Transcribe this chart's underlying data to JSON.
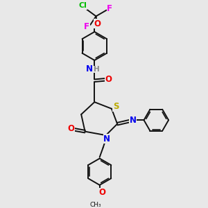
{
  "background_color": "#e8e8e8",
  "figsize": [
    3.0,
    3.0
  ],
  "dpi": 100,
  "atom_colors": {
    "C": "#000000",
    "H": "#888888",
    "N": "#0000ee",
    "O": "#ee0000",
    "S": "#bbaa00",
    "F": "#ee00ee",
    "Cl": "#00bb00"
  },
  "bond_color": "#111111",
  "bond_width": 1.4,
  "font_size_atom": 8.5
}
